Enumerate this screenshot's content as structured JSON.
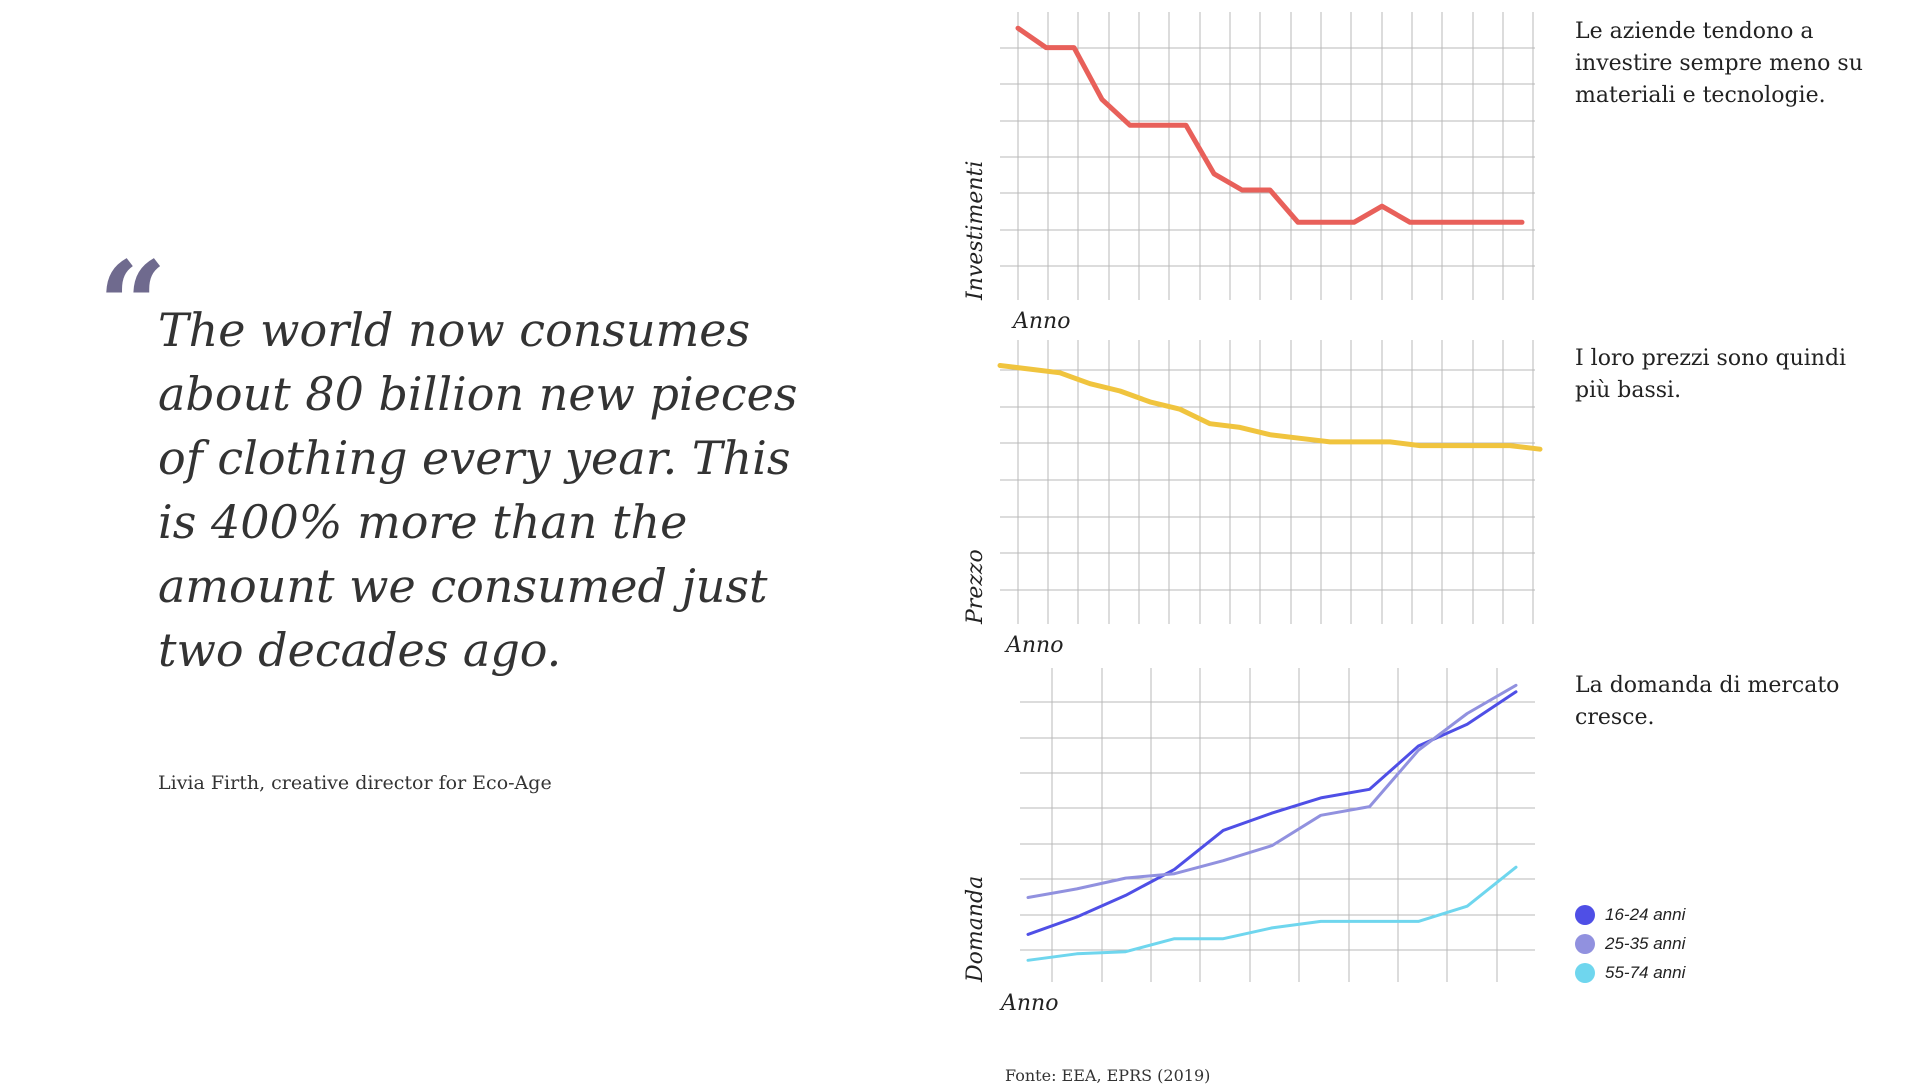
{
  "quote": {
    "mark": "“",
    "text": "The world now consumes about 80 billion new pieces of clothing every year. This is 400% more than the amount we consumed just two decades ago.",
    "author": "Livia Firth, creative director for Eco-Age"
  },
  "chart_data": [
    {
      "type": "line",
      "xlabel": "Anno",
      "ylabel": "Investimenti",
      "caption": "Le aziende tendono a investire sempre meno su materiali e tecnologie.",
      "x": [
        0,
        1,
        2,
        3,
        4,
        5,
        6,
        7,
        8,
        9,
        10,
        11,
        12,
        13,
        14,
        15,
        16,
        17,
        18
      ],
      "series": [
        {
          "color": "#e8605a",
          "values": [
            7.5,
            6.9,
            6.9,
            5.3,
            4.5,
            4.5,
            4.5,
            3.0,
            2.5,
            2.5,
            1.5,
            1.5,
            1.5,
            2.0,
            1.5,
            1.5,
            1.5,
            1.5,
            1.5
          ]
        }
      ],
      "ylim": [
        -0.9,
        8.0
      ],
      "grid": true
    },
    {
      "type": "line",
      "xlabel": "Anno",
      "ylabel": "Prezzo",
      "caption": "I loro prezzi sono quindi più bassi.",
      "x": [
        0,
        1,
        2,
        3,
        4,
        5,
        6,
        7,
        8,
        9,
        10,
        11,
        12,
        13,
        14,
        15,
        16,
        17,
        18
      ],
      "series": [
        {
          "color": "#f0c43e",
          "values": [
            6.3,
            6.2,
            6.1,
            5.8,
            5.6,
            5.3,
            5.1,
            4.7,
            4.6,
            4.4,
            4.3,
            4.2,
            4.2,
            4.2,
            4.1,
            4.1,
            4.1,
            4.1,
            4.0
          ]
        }
      ],
      "ylim": [
        -0.8,
        7.0
      ],
      "grid": true
    },
    {
      "type": "line",
      "xlabel": "Anno",
      "ylabel": "Domanda",
      "caption": "La domanda di mercato cresce.",
      "x": [
        0,
        1,
        2,
        3,
        4,
        5,
        6,
        7,
        8,
        9,
        10
      ],
      "series": [
        {
          "name": "16-24 anni",
          "color": "#4f4fe6",
          "values": [
            1.7,
            2.5,
            3.5,
            4.7,
            6.5,
            7.3,
            8.0,
            8.4,
            10.4,
            11.4,
            12.9
          ]
        },
        {
          "name": "25-35 anni",
          "color": "#9191df",
          "values": [
            3.4,
            3.8,
            4.3,
            4.5,
            5.1,
            5.8,
            7.2,
            7.6,
            10.2,
            11.9,
            13.2
          ]
        },
        {
          "name": "55-74 anni",
          "color": "#6fd6ee",
          "values": [
            0.5,
            0.8,
            0.9,
            1.5,
            1.5,
            2.0,
            2.3,
            2.3,
            2.3,
            3.0,
            4.8
          ]
        }
      ],
      "ylim": [
        -0.5,
        14.0
      ],
      "grid": true,
      "legend": "bottom-right"
    }
  ],
  "source": "Fonte: EEA, EPRS (2019)"
}
